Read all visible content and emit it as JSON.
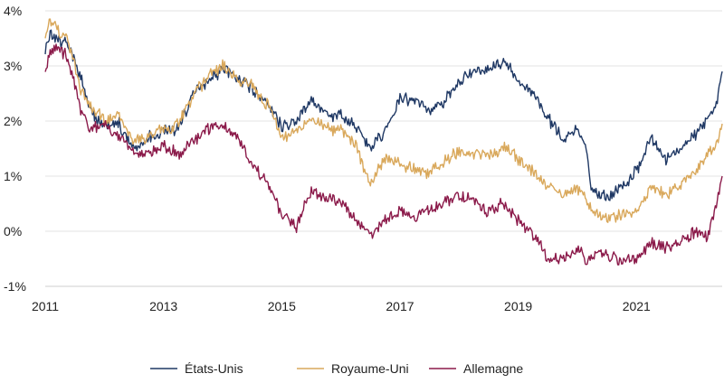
{
  "chart_data": {
    "type": "line",
    "title": "",
    "xlabel": "",
    "ylabel": "",
    "xlim": [
      2011,
      2022.45
    ],
    "ylim": [
      -1,
      4
    ],
    "x_ticks": [
      2011,
      2013,
      2015,
      2017,
      2019,
      2021
    ],
    "x_tick_labels": [
      "2011",
      "2013",
      "2015",
      "2017",
      "2019",
      "2021"
    ],
    "y_ticks": [
      4,
      3,
      2,
      1,
      0,
      -1
    ],
    "y_tick_labels": [
      "4%",
      "3%",
      "2%",
      "1%",
      "0%",
      "-1%"
    ],
    "grid": "horizontal",
    "legend_position": "bottom",
    "series": [
      {
        "name": "États-Unis",
        "color": "#1f3864",
        "x": [
          2011.0,
          2011.1,
          2011.2,
          2011.35,
          2011.5,
          2011.6,
          2011.75,
          2012.0,
          2012.25,
          2012.5,
          2012.75,
          2013.0,
          2013.25,
          2013.5,
          2013.75,
          2014.0,
          2014.25,
          2014.5,
          2014.75,
          2015.0,
          2015.25,
          2015.5,
          2015.75,
          2016.0,
          2016.25,
          2016.5,
          2016.75,
          2017.0,
          2017.25,
          2017.5,
          2017.75,
          2018.0,
          2018.25,
          2018.5,
          2018.75,
          2019.0,
          2019.25,
          2019.5,
          2019.75,
          2020.0,
          2020.15,
          2020.25,
          2020.5,
          2020.75,
          2021.0,
          2021.25,
          2021.5,
          2021.75,
          2022.0,
          2022.2,
          2022.35,
          2022.45
        ],
        "y": [
          3.3,
          3.6,
          3.45,
          3.4,
          3.1,
          2.8,
          2.2,
          1.9,
          1.95,
          1.5,
          1.7,
          1.8,
          1.85,
          2.5,
          2.7,
          2.95,
          2.75,
          2.6,
          2.3,
          1.9,
          2.0,
          2.4,
          2.1,
          2.1,
          1.9,
          1.5,
          1.8,
          2.45,
          2.35,
          2.2,
          2.35,
          2.7,
          2.9,
          2.95,
          3.1,
          2.75,
          2.5,
          2.05,
          1.7,
          1.85,
          1.5,
          0.7,
          0.65,
          0.8,
          1.1,
          1.7,
          1.3,
          1.5,
          1.75,
          2.0,
          2.3,
          2.9
        ]
      },
      {
        "name": "Royaume-Uni",
        "color": "#d9a85b",
        "x": [
          2011.0,
          2011.1,
          2011.2,
          2011.35,
          2011.5,
          2011.6,
          2011.75,
          2012.0,
          2012.25,
          2012.5,
          2012.75,
          2013.0,
          2013.25,
          2013.5,
          2013.75,
          2014.0,
          2014.25,
          2014.5,
          2014.75,
          2015.0,
          2015.25,
          2015.5,
          2015.75,
          2016.0,
          2016.25,
          2016.5,
          2016.75,
          2017.0,
          2017.25,
          2017.5,
          2017.75,
          2018.0,
          2018.25,
          2018.5,
          2018.75,
          2019.0,
          2019.25,
          2019.5,
          2019.75,
          2020.0,
          2020.15,
          2020.25,
          2020.5,
          2020.75,
          2021.0,
          2021.25,
          2021.5,
          2021.75,
          2022.0,
          2022.2,
          2022.35,
          2022.45
        ],
        "y": [
          3.6,
          3.85,
          3.65,
          3.5,
          3.0,
          2.55,
          2.3,
          2.0,
          2.1,
          1.6,
          1.75,
          1.85,
          1.95,
          2.45,
          2.8,
          3.0,
          2.75,
          2.65,
          2.3,
          1.7,
          1.8,
          2.05,
          1.85,
          1.85,
          1.55,
          0.8,
          1.35,
          1.25,
          1.1,
          1.05,
          1.3,
          1.45,
          1.4,
          1.35,
          1.55,
          1.3,
          1.1,
          0.8,
          0.65,
          0.8,
          0.55,
          0.35,
          0.25,
          0.3,
          0.3,
          0.8,
          0.65,
          0.85,
          1.1,
          1.4,
          1.6,
          1.95
        ]
      },
      {
        "name": "Allemagne",
        "color": "#8b1a4a",
        "x": [
          2011.0,
          2011.1,
          2011.2,
          2011.35,
          2011.5,
          2011.6,
          2011.75,
          2012.0,
          2012.25,
          2012.5,
          2012.75,
          2013.0,
          2013.25,
          2013.5,
          2013.75,
          2014.0,
          2014.25,
          2014.5,
          2014.75,
          2015.0,
          2015.25,
          2015.5,
          2015.75,
          2016.0,
          2016.25,
          2016.5,
          2016.75,
          2017.0,
          2017.25,
          2017.5,
          2017.75,
          2018.0,
          2018.25,
          2018.5,
          2018.75,
          2019.0,
          2019.25,
          2019.5,
          2019.75,
          2020.0,
          2020.15,
          2020.25,
          2020.5,
          2020.75,
          2021.0,
          2021.25,
          2021.5,
          2021.75,
          2022.0,
          2022.2,
          2022.35,
          2022.45
        ],
        "y": [
          2.9,
          3.3,
          3.35,
          3.2,
          2.7,
          2.2,
          1.85,
          1.95,
          1.7,
          1.4,
          1.4,
          1.55,
          1.4,
          1.65,
          1.85,
          1.9,
          1.7,
          1.2,
          0.9,
          0.3,
          0.1,
          0.75,
          0.6,
          0.55,
          0.2,
          -0.1,
          0.2,
          0.35,
          0.25,
          0.4,
          0.5,
          0.65,
          0.55,
          0.35,
          0.5,
          0.2,
          -0.05,
          -0.5,
          -0.5,
          -0.3,
          -0.55,
          -0.45,
          -0.4,
          -0.55,
          -0.5,
          -0.2,
          -0.3,
          -0.2,
          0.0,
          -0.1,
          0.5,
          1.0
        ]
      }
    ]
  }
}
